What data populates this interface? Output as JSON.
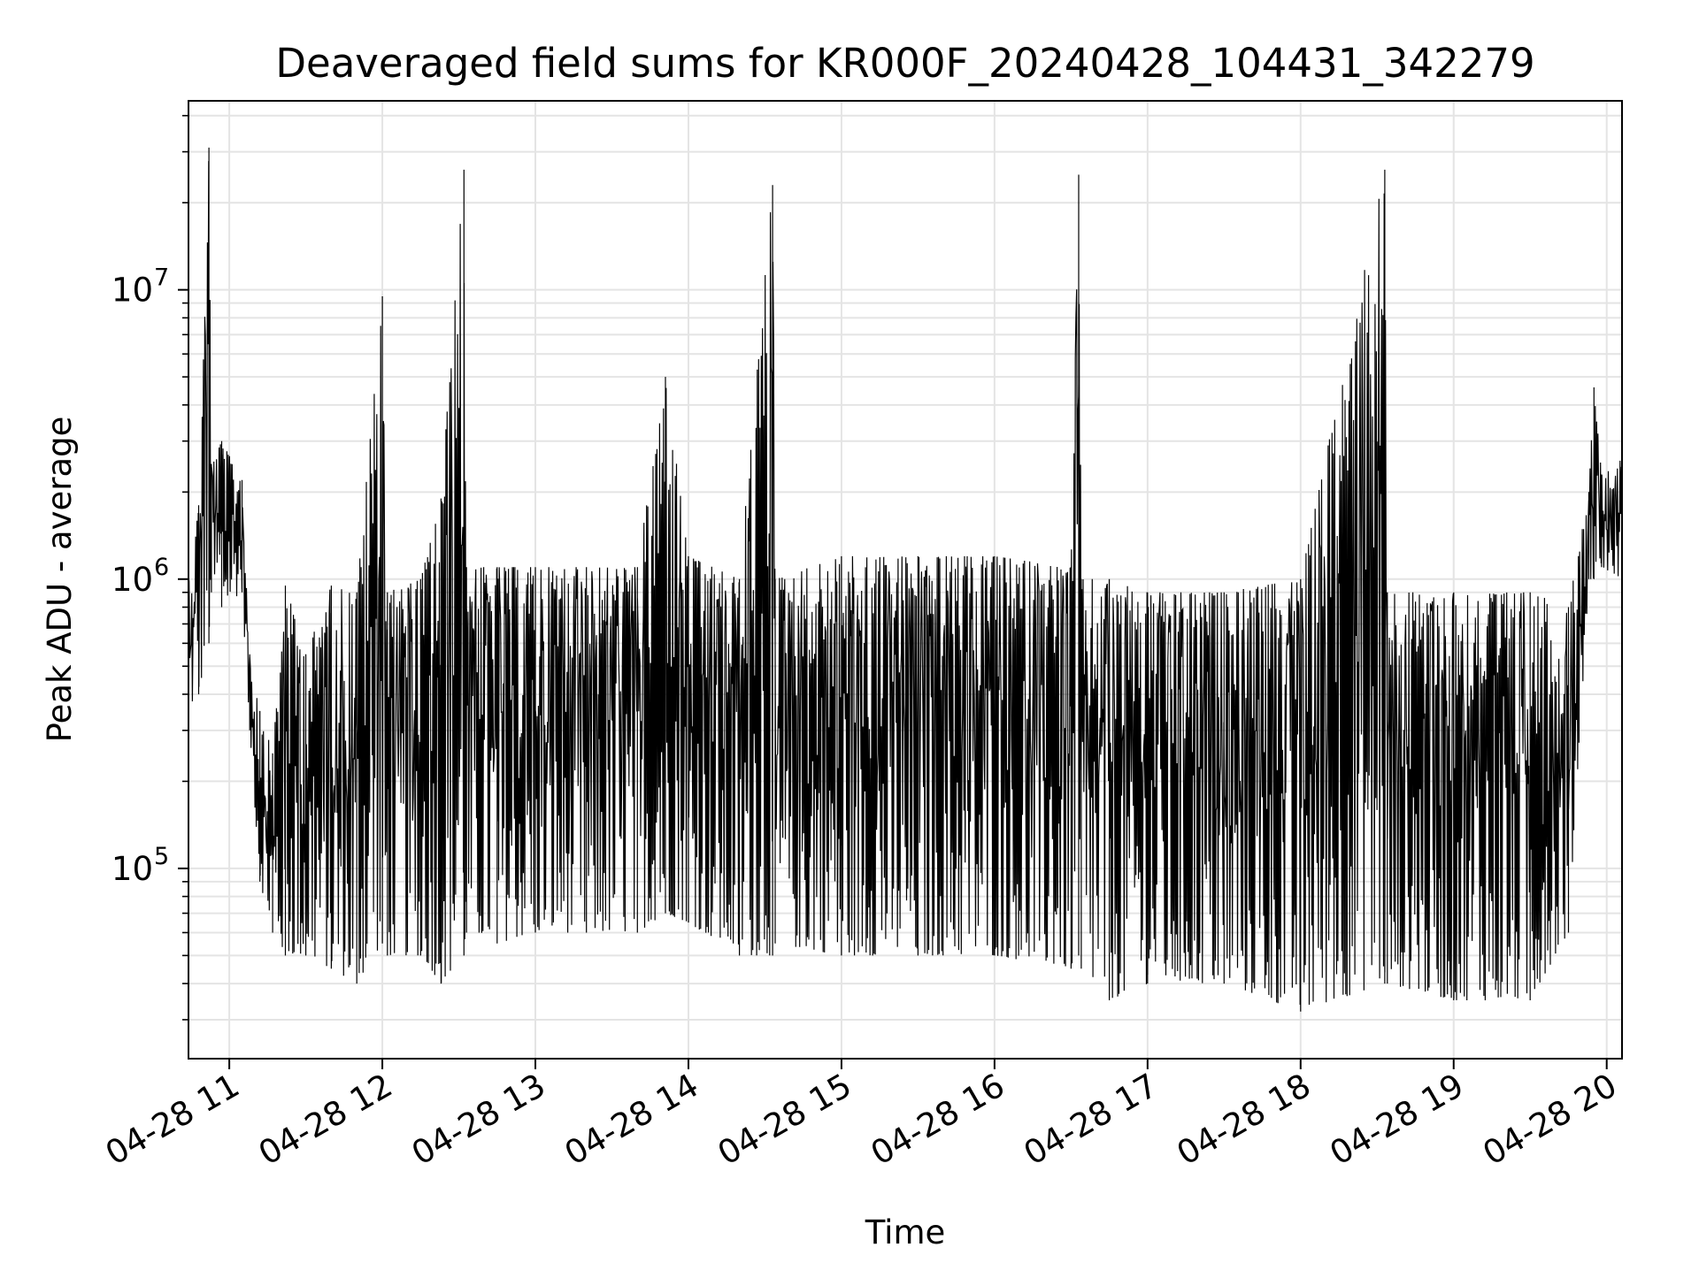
{
  "chart_data": {
    "type": "line",
    "title": "Deaveraged field sums for KR000F_20240428_104431_342279",
    "xlabel": "Time",
    "ylabel": "Peak ADU - average",
    "yscale": "log",
    "ylim": [
      22000,
      45000000
    ],
    "xlim": [
      "2024-04-28 10:44",
      "2024-04-28 20:06"
    ],
    "grid": true,
    "legend": "none",
    "line_color": "#000000",
    "x_ticks": [
      {
        "label": "04-28 11",
        "time": "2024-04-28 11:00"
      },
      {
        "label": "04-28 12",
        "time": "2024-04-28 12:00"
      },
      {
        "label": "04-28 13",
        "time": "2024-04-28 13:00"
      },
      {
        "label": "04-28 14",
        "time": "2024-04-28 14:00"
      },
      {
        "label": "04-28 15",
        "time": "2024-04-28 15:00"
      },
      {
        "label": "04-28 16",
        "time": "2024-04-28 16:00"
      },
      {
        "label": "04-28 17",
        "time": "2024-04-28 17:00"
      },
      {
        "label": "04-28 18",
        "time": "2024-04-28 18:00"
      },
      {
        "label": "04-28 19",
        "time": "2024-04-28 19:00"
      },
      {
        "label": "04-28 20",
        "time": "2024-04-28 20:00"
      }
    ],
    "y_ticks": [
      {
        "base": "10",
        "exp": "5",
        "value": 100000
      },
      {
        "base": "10",
        "exp": "6",
        "value": 1000000
      },
      {
        "base": "10",
        "exp": "7",
        "value": 10000000
      }
    ],
    "x": [
      "2024-04-28 10:44",
      "2024-04-28 10:48",
      "2024-04-28 10:52",
      "2024-04-28 10:53",
      "2024-04-28 10:57",
      "2024-04-28 11:05",
      "2024-04-28 11:08",
      "2024-04-28 11:12",
      "2024-04-28 11:17",
      "2024-04-28 11:22",
      "2024-04-28 11:30",
      "2024-04-28 11:40",
      "2024-04-28 11:50",
      "2024-04-28 12:00",
      "2024-04-28 12:02",
      "2024-04-28 12:15",
      "2024-04-28 12:23",
      "2024-04-28 12:32",
      "2024-04-28 12:33",
      "2024-04-28 12:45",
      "2024-04-28 13:00",
      "2024-04-28 13:20",
      "2024-04-28 13:40",
      "2024-04-28 13:51",
      "2024-04-28 14:00",
      "2024-04-28 14:20",
      "2024-04-28 14:33",
      "2024-04-28 14:34",
      "2024-04-28 15:00",
      "2024-04-28 15:30",
      "2024-04-28 16:00",
      "2024-04-28 16:30",
      "2024-04-28 16:33",
      "2024-04-28 16:34",
      "2024-04-28 16:45",
      "2024-04-28 17:00",
      "2024-04-28 17:30",
      "2024-04-28 18:00",
      "2024-04-28 18:33",
      "2024-04-28 18:34",
      "2024-04-28 19:00",
      "2024-04-28 19:30",
      "2024-04-28 19:45",
      "2024-04-28 19:53",
      "2024-04-28 19:55",
      "2024-04-28 19:58",
      "2024-04-28 20:06"
    ],
    "y_high": [
      1000000,
      1800000,
      31000000,
      2500000,
      3000000,
      2200000,
      550000,
      350000,
      250000,
      950000,
      550000,
      950000,
      900000,
      9500000,
      900000,
      1000000,
      1900000,
      26000000,
      1100000,
      1100000,
      1100000,
      1100000,
      1100000,
      5000000,
      1200000,
      1000000,
      23000000,
      1000000,
      1200000,
      1200000,
      1200000,
      1100000,
      25000000,
      1000000,
      1000000,
      900000,
      900000,
      1000000,
      26000000,
      900000,
      900000,
      900000,
      800000,
      2000000,
      4600000,
      2300000,
      2600000
    ],
    "y_low": [
      350000,
      400000,
      600000,
      900000,
      800000,
      900000,
      300000,
      90000,
      60000,
      50000,
      50000,
      45000,
      40000,
      55000,
      50000,
      50000,
      40000,
      50000,
      60000,
      55000,
      60000,
      60000,
      60000,
      70000,
      65000,
      50000,
      50000,
      55000,
      50000,
      50000,
      50000,
      45000,
      50000,
      45000,
      35000,
      40000,
      40000,
      32000,
      40000,
      40000,
      35000,
      35000,
      60000,
      1000000,
      1000000,
      1100000,
      1000000
    ]
  }
}
